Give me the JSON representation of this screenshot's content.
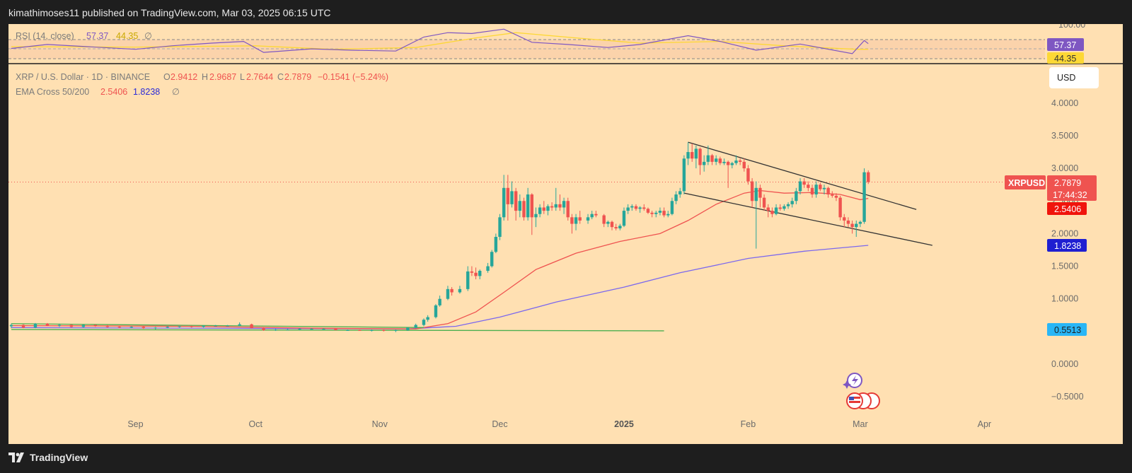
{
  "header": {
    "published": "kimathimoses11 published on TradingView.com, Mar 03, 2025 06:15 UTC"
  },
  "footer": {
    "brand": "TradingView"
  },
  "symbol": {
    "title": "XRP / U.S. Dollar · 1D · BINANCE",
    "open_label": "O",
    "open": "2.9412",
    "high_label": "H",
    "high": "2.9687",
    "low_label": "L",
    "low": "2.7644",
    "close_label": "C",
    "close": "2.7879",
    "change": "−0.1541 (−5.24%)"
  },
  "ema": {
    "label": "EMA Cross 50/200",
    "fast": "2.5406",
    "slow": "1.8238",
    "flag": "∅"
  },
  "rsi": {
    "label": "RSI (14, close)",
    "value": "57.37",
    "ma": "44.35",
    "flag": "∅",
    "axis_top": "100.00",
    "tag_value": "57.37",
    "tag_ma": "44.35"
  },
  "currency_button": "USD",
  "price_tags": {
    "symbol": "XRPUSD",
    "price": "2.7879",
    "countdown": "17:44:32",
    "ema_fast": "2.5406",
    "ema_slow": "1.8238",
    "line": "0.5513"
  },
  "colors": {
    "background": "#ffe0b2",
    "up": "#26a69a",
    "down": "#ef5350",
    "ema_fast": "#ef5350",
    "ema_slow": "#7b68ee",
    "rsi": "#7e57c2",
    "rsi_ma": "#fdd835"
  },
  "chart_data": {
    "type": "candlestick",
    "y_ticks": [
      "4.0000",
      "3.5000",
      "3.0000",
      "2.5000",
      "2.0000",
      "1.5000",
      "1.0000",
      "0.5000",
      "0.0000",
      "−0.5000"
    ],
    "y_tick_values": [
      4,
      3.5,
      3,
      2.5,
      2,
      1.5,
      1,
      0.5,
      0,
      -0.5
    ],
    "x_labels": [
      "Sep",
      "Oct",
      "Nov",
      "Dec",
      "2025",
      "Feb",
      "Mar",
      "Apr"
    ],
    "ylim": [
      -0.6,
      4.3
    ],
    "candles": [
      [
        "2024-08-01",
        0.58,
        0.62,
        0.55,
        0.6
      ],
      [
        "2024-08-04",
        0.6,
        0.61,
        0.55,
        0.56
      ],
      [
        "2024-08-07",
        0.56,
        0.63,
        0.55,
        0.62
      ],
      [
        "2024-08-10",
        0.62,
        0.63,
        0.58,
        0.59
      ],
      [
        "2024-08-13",
        0.59,
        0.62,
        0.57,
        0.6
      ],
      [
        "2024-08-16",
        0.6,
        0.61,
        0.56,
        0.57
      ],
      [
        "2024-08-19",
        0.57,
        0.61,
        0.56,
        0.6
      ],
      [
        "2024-08-22",
        0.6,
        0.61,
        0.57,
        0.58
      ],
      [
        "2024-08-25",
        0.58,
        0.6,
        0.56,
        0.57
      ],
      [
        "2024-08-28",
        0.57,
        0.59,
        0.55,
        0.56
      ],
      [
        "2024-08-31",
        0.56,
        0.58,
        0.55,
        0.57
      ],
      [
        "2024-09-03",
        0.57,
        0.58,
        0.54,
        0.55
      ],
      [
        "2024-09-06",
        0.55,
        0.57,
        0.53,
        0.56
      ],
      [
        "2024-09-09",
        0.56,
        0.58,
        0.55,
        0.57
      ],
      [
        "2024-09-12",
        0.57,
        0.58,
        0.56,
        0.58
      ],
      [
        "2024-09-15",
        0.58,
        0.59,
        0.56,
        0.57
      ],
      [
        "2024-09-18",
        0.57,
        0.59,
        0.56,
        0.59
      ],
      [
        "2024-09-21",
        0.59,
        0.6,
        0.58,
        0.59
      ],
      [
        "2024-09-24",
        0.59,
        0.6,
        0.58,
        0.59
      ],
      [
        "2024-09-27",
        0.59,
        0.64,
        0.58,
        0.61
      ],
      [
        "2024-09-30",
        0.61,
        0.62,
        0.55,
        0.55
      ],
      [
        "2024-10-03",
        0.55,
        0.56,
        0.51,
        0.52
      ],
      [
        "2024-10-06",
        0.52,
        0.54,
        0.51,
        0.53
      ],
      [
        "2024-10-09",
        0.53,
        0.54,
        0.52,
        0.53
      ],
      [
        "2024-10-12",
        0.53,
        0.55,
        0.52,
        0.54
      ],
      [
        "2024-10-15",
        0.54,
        0.55,
        0.53,
        0.54
      ],
      [
        "2024-10-18",
        0.54,
        0.55,
        0.53,
        0.54
      ],
      [
        "2024-10-21",
        0.54,
        0.55,
        0.52,
        0.52
      ],
      [
        "2024-10-24",
        0.52,
        0.53,
        0.51,
        0.52
      ],
      [
        "2024-10-27",
        0.52,
        0.53,
        0.51,
        0.51
      ],
      [
        "2024-10-30",
        0.51,
        0.53,
        0.5,
        0.52
      ],
      [
        "2024-11-02",
        0.52,
        0.53,
        0.5,
        0.51
      ],
      [
        "2024-11-05",
        0.51,
        0.53,
        0.49,
        0.52
      ],
      [
        "2024-11-08",
        0.52,
        0.56,
        0.51,
        0.56
      ],
      [
        "2024-11-10",
        0.56,
        0.62,
        0.55,
        0.6
      ],
      [
        "2024-11-12",
        0.6,
        0.7,
        0.58,
        0.68
      ],
      [
        "2024-11-13",
        0.68,
        0.75,
        0.65,
        0.72
      ],
      [
        "2024-11-15",
        0.72,
        0.92,
        0.7,
        0.9
      ],
      [
        "2024-11-16",
        0.9,
        1.05,
        0.88,
        1.0
      ],
      [
        "2024-11-18",
        1.0,
        1.2,
        0.98,
        1.15
      ],
      [
        "2024-11-19",
        1.15,
        1.18,
        1.05,
        1.1
      ],
      [
        "2024-11-21",
        1.1,
        1.2,
        1.08,
        1.15
      ],
      [
        "2024-11-23",
        1.15,
        1.5,
        1.12,
        1.42
      ],
      [
        "2024-11-24",
        1.42,
        1.5,
        1.35,
        1.4
      ],
      [
        "2024-11-25",
        1.4,
        1.48,
        1.3,
        1.35
      ],
      [
        "2024-11-26",
        1.35,
        1.45,
        1.3,
        1.43
      ],
      [
        "2024-11-28",
        1.43,
        1.55,
        1.4,
        1.5
      ],
      [
        "2024-11-29",
        1.5,
        1.75,
        1.48,
        1.72
      ],
      [
        "2024-11-30",
        1.72,
        2.0,
        1.7,
        1.95
      ],
      [
        "2024-12-01",
        1.95,
        2.3,
        1.9,
        2.25
      ],
      [
        "2024-12-02",
        2.25,
        2.9,
        2.2,
        2.7
      ],
      [
        "2024-12-03",
        2.7,
        2.9,
        2.2,
        2.45
      ],
      [
        "2024-12-04",
        2.45,
        2.8,
        2.4,
        2.65
      ],
      [
        "2024-12-05",
        2.65,
        2.7,
        2.2,
        2.35
      ],
      [
        "2024-12-06",
        2.35,
        2.6,
        2.25,
        2.5
      ],
      [
        "2024-12-07",
        2.5,
        2.55,
        2.2,
        2.25
      ],
      [
        "2024-12-08",
        2.25,
        2.7,
        2.2,
        2.6
      ],
      [
        "2024-12-09",
        2.6,
        2.62,
        1.98,
        2.25
      ],
      [
        "2024-12-10",
        2.25,
        2.4,
        2.1,
        2.3
      ],
      [
        "2024-12-11",
        2.3,
        2.45,
        2.25,
        2.4
      ],
      [
        "2024-12-12",
        2.4,
        2.5,
        2.3,
        2.35
      ],
      [
        "2024-12-13",
        2.35,
        2.45,
        2.28,
        2.42
      ],
      [
        "2024-12-14",
        2.42,
        2.48,
        2.35,
        2.4
      ],
      [
        "2024-12-15",
        2.4,
        2.7,
        2.35,
        2.45
      ],
      [
        "2024-12-16",
        2.45,
        2.6,
        2.35,
        2.4
      ],
      [
        "2024-12-17",
        2.4,
        2.55,
        2.3,
        2.5
      ],
      [
        "2024-12-18",
        2.5,
        2.55,
        2.2,
        2.25
      ],
      [
        "2024-12-19",
        2.25,
        2.3,
        2.0,
        2.15
      ],
      [
        "2024-12-20",
        2.15,
        2.3,
        2.05,
        2.25
      ],
      [
        "2024-12-21",
        2.25,
        2.35,
        2.15,
        2.2
      ],
      [
        "2024-12-23",
        2.2,
        2.3,
        2.15,
        2.25
      ],
      [
        "2024-12-24",
        2.25,
        2.35,
        2.22,
        2.3
      ],
      [
        "2024-12-25",
        2.3,
        2.35,
        2.25,
        2.28
      ],
      [
        "2024-12-27",
        2.28,
        2.3,
        2.1,
        2.15
      ],
      [
        "2024-12-28",
        2.15,
        2.2,
        2.1,
        2.18
      ],
      [
        "2024-12-29",
        2.18,
        2.2,
        2.05,
        2.1
      ],
      [
        "2024-12-30",
        2.1,
        2.15,
        2.05,
        2.08
      ],
      [
        "2024-12-31",
        2.08,
        2.15,
        2.05,
        2.12
      ],
      [
        "2025-01-01",
        2.12,
        2.4,
        2.1,
        2.35
      ],
      [
        "2025-01-02",
        2.35,
        2.45,
        2.3,
        2.4
      ],
      [
        "2025-01-03",
        2.4,
        2.45,
        2.35,
        2.42
      ],
      [
        "2025-01-04",
        2.42,
        2.45,
        2.35,
        2.38
      ],
      [
        "2025-01-05",
        2.38,
        2.42,
        2.32,
        2.4
      ],
      [
        "2025-01-06",
        2.4,
        2.45,
        2.35,
        2.38
      ],
      [
        "2025-01-07",
        2.38,
        2.4,
        2.3,
        2.32
      ],
      [
        "2025-01-08",
        2.32,
        2.35,
        2.25,
        2.3
      ],
      [
        "2025-01-09",
        2.3,
        2.35,
        2.25,
        2.32
      ],
      [
        "2025-01-10",
        2.32,
        2.4,
        2.28,
        2.35
      ],
      [
        "2025-01-11",
        2.35,
        2.4,
        2.25,
        2.28
      ],
      [
        "2025-01-12",
        2.28,
        2.35,
        2.25,
        2.3
      ],
      [
        "2025-01-13",
        2.3,
        2.55,
        2.28,
        2.5
      ],
      [
        "2025-01-14",
        2.5,
        2.65,
        2.45,
        2.6
      ],
      [
        "2025-01-15",
        2.6,
        2.7,
        2.55,
        2.65
      ],
      [
        "2025-01-16",
        2.65,
        3.2,
        2.6,
        3.15
      ],
      [
        "2025-01-17",
        3.15,
        3.4,
        3.05,
        3.25
      ],
      [
        "2025-01-18",
        3.25,
        3.38,
        3.1,
        3.15
      ],
      [
        "2025-01-19",
        3.15,
        3.35,
        3.0,
        3.3
      ],
      [
        "2025-01-20",
        3.3,
        3.32,
        2.9,
        3.05
      ],
      [
        "2025-01-21",
        3.05,
        3.2,
        2.95,
        3.1
      ],
      [
        "2025-01-22",
        3.1,
        3.35,
        3.05,
        3.2
      ],
      [
        "2025-01-23",
        3.2,
        3.22,
        3.05,
        3.1
      ],
      [
        "2025-01-24",
        3.1,
        3.2,
        3.05,
        3.15
      ],
      [
        "2025-01-25",
        3.15,
        3.18,
        3.05,
        3.08
      ],
      [
        "2025-01-26",
        3.08,
        3.15,
        3.05,
        3.1
      ],
      [
        "2025-01-27",
        3.1,
        3.12,
        2.7,
        3.05
      ],
      [
        "2025-01-28",
        3.05,
        3.1,
        3.0,
        3.08
      ],
      [
        "2025-01-29",
        3.08,
        3.2,
        3.05,
        3.12
      ],
      [
        "2025-01-30",
        3.12,
        3.15,
        3.05,
        3.1
      ],
      [
        "2025-01-31",
        3.1,
        3.15,
        2.95,
        3.0
      ],
      [
        "2025-02-01",
        3.0,
        3.05,
        2.75,
        2.8
      ],
      [
        "2025-02-02",
        2.8,
        2.85,
        2.4,
        2.5
      ],
      [
        "2025-02-03",
        2.5,
        2.8,
        1.77,
        2.7
      ],
      [
        "2025-02-04",
        2.7,
        2.75,
        2.4,
        2.55
      ],
      [
        "2025-02-05",
        2.55,
        2.6,
        2.35,
        2.4
      ],
      [
        "2025-02-06",
        2.4,
        2.45,
        2.25,
        2.35
      ],
      [
        "2025-02-07",
        2.35,
        2.4,
        2.25,
        2.3
      ],
      [
        "2025-02-08",
        2.3,
        2.45,
        2.28,
        2.4
      ],
      [
        "2025-02-09",
        2.4,
        2.45,
        2.35,
        2.38
      ],
      [
        "2025-02-10",
        2.38,
        2.45,
        2.35,
        2.42
      ],
      [
        "2025-02-11",
        2.42,
        2.48,
        2.38,
        2.45
      ],
      [
        "2025-02-12",
        2.45,
        2.55,
        2.4,
        2.5
      ],
      [
        "2025-02-13",
        2.5,
        2.7,
        2.45,
        2.65
      ],
      [
        "2025-02-14",
        2.65,
        2.85,
        2.6,
        2.8
      ],
      [
        "2025-02-15",
        2.8,
        2.85,
        2.7,
        2.75
      ],
      [
        "2025-02-16",
        2.75,
        2.8,
        2.65,
        2.7
      ],
      [
        "2025-02-17",
        2.7,
        2.75,
        2.55,
        2.6
      ],
      [
        "2025-02-18",
        2.6,
        2.8,
        2.55,
        2.75
      ],
      [
        "2025-02-19",
        2.75,
        2.78,
        2.65,
        2.68
      ],
      [
        "2025-02-20",
        2.68,
        2.75,
        2.6,
        2.7
      ],
      [
        "2025-02-21",
        2.7,
        2.72,
        2.55,
        2.6
      ],
      [
        "2025-02-22",
        2.6,
        2.65,
        2.55,
        2.58
      ],
      [
        "2025-02-23",
        2.58,
        2.62,
        2.5,
        2.55
      ],
      [
        "2025-02-24",
        2.55,
        2.58,
        2.2,
        2.25
      ],
      [
        "2025-02-25",
        2.25,
        2.3,
        2.1,
        2.2
      ],
      [
        "2025-02-26",
        2.2,
        2.25,
        2.1,
        2.15
      ],
      [
        "2025-02-27",
        2.15,
        2.2,
        2.0,
        2.1
      ],
      [
        "2025-02-28",
        2.1,
        2.2,
        1.95,
        2.15
      ],
      [
        "2025-03-01",
        2.15,
        2.2,
        2.1,
        2.18
      ],
      [
        "2025-03-02",
        2.18,
        3.0,
        2.15,
        2.94
      ],
      [
        "2025-03-03",
        2.94,
        2.97,
        2.76,
        2.79
      ]
    ],
    "ema50": [
      [
        "2024-08-01",
        0.59
      ],
      [
        "2024-09-15",
        0.58
      ],
      [
        "2024-10-15",
        0.55
      ],
      [
        "2024-11-10",
        0.54
      ],
      [
        "2024-11-18",
        0.62
      ],
      [
        "2024-11-25",
        0.8
      ],
      [
        "2024-12-02",
        1.1
      ],
      [
        "2024-12-10",
        1.45
      ],
      [
        "2024-12-20",
        1.7
      ],
      [
        "2024-12-31",
        1.88
      ],
      [
        "2025-01-10",
        2.0
      ],
      [
        "2025-01-17",
        2.2
      ],
      [
        "2025-01-24",
        2.45
      ],
      [
        "2025-01-31",
        2.62
      ],
      [
        "2025-02-04",
        2.66
      ],
      [
        "2025-02-10",
        2.62
      ],
      [
        "2025-02-17",
        2.63
      ],
      [
        "2025-02-24",
        2.6
      ],
      [
        "2025-03-01",
        2.52
      ],
      [
        "2025-03-03",
        2.54
      ]
    ],
    "ema200": [
      [
        "2024-08-01",
        0.56
      ],
      [
        "2024-11-08",
        0.54
      ],
      [
        "2024-11-20",
        0.58
      ],
      [
        "2024-12-01",
        0.72
      ],
      [
        "2024-12-15",
        0.95
      ],
      [
        "2025-01-01",
        1.18
      ],
      [
        "2025-01-15",
        1.4
      ],
      [
        "2025-02-01",
        1.62
      ],
      [
        "2025-02-15",
        1.73
      ],
      [
        "2025-03-03",
        1.82
      ]
    ],
    "trendlines": [
      {
        "name": "channel-top",
        "from": [
          "2025-01-17",
          3.4
        ],
        "to": [
          "2025-03-15",
          2.37
        ],
        "color": "#333333"
      },
      {
        "name": "channel-bottom",
        "from": [
          "2025-01-16",
          2.62
        ],
        "to": [
          "2025-03-19",
          1.82
        ],
        "color": "#333333"
      },
      {
        "name": "support-top",
        "from": [
          "2024-08-01",
          0.62
        ],
        "to": [
          "2024-11-12",
          0.56
        ],
        "color": "#4caf50"
      },
      {
        "name": "support-bottom",
        "from": [
          "2024-08-01",
          0.53
        ],
        "to": [
          "2025-01-11",
          0.51
        ],
        "color": "#4caf50"
      }
    ],
    "rsi_series": [
      [
        "2024-08-01",
        46
      ],
      [
        "2024-08-10",
        55
      ],
      [
        "2024-08-20",
        50
      ],
      [
        "2024-09-01",
        44
      ],
      [
        "2024-09-10",
        52
      ],
      [
        "2024-09-20",
        58
      ],
      [
        "2024-09-28",
        62
      ],
      [
        "2024-10-03",
        37
      ],
      [
        "2024-10-15",
        45
      ],
      [
        "2024-10-25",
        42
      ],
      [
        "2024-11-05",
        40
      ],
      [
        "2024-11-12",
        72
      ],
      [
        "2024-11-18",
        82
      ],
      [
        "2024-11-24",
        80
      ],
      [
        "2024-12-02",
        90
      ],
      [
        "2024-12-09",
        60
      ],
      [
        "2024-12-18",
        55
      ],
      [
        "2024-12-28",
        48
      ],
      [
        "2025-01-05",
        55
      ],
      [
        "2025-01-17",
        75
      ],
      [
        "2025-01-25",
        62
      ],
      [
        "2025-02-03",
        42
      ],
      [
        "2025-02-14",
        56
      ],
      [
        "2025-02-27",
        34
      ],
      [
        "2025-03-02",
        64
      ],
      [
        "2025-03-03",
        57
      ]
    ],
    "rsi_ma_series": [
      [
        "2024-08-01",
        50
      ],
      [
        "2024-09-01",
        49
      ],
      [
        "2024-10-01",
        52
      ],
      [
        "2024-10-20",
        44
      ],
      [
        "2024-11-10",
        48
      ],
      [
        "2024-11-25",
        70
      ],
      [
        "2024-12-05",
        82
      ],
      [
        "2024-12-20",
        70
      ],
      [
        "2025-01-05",
        58
      ],
      [
        "2025-01-25",
        62
      ],
      [
        "2025-02-10",
        52
      ],
      [
        "2025-02-28",
        44
      ],
      [
        "2025-03-03",
        44
      ]
    ]
  }
}
